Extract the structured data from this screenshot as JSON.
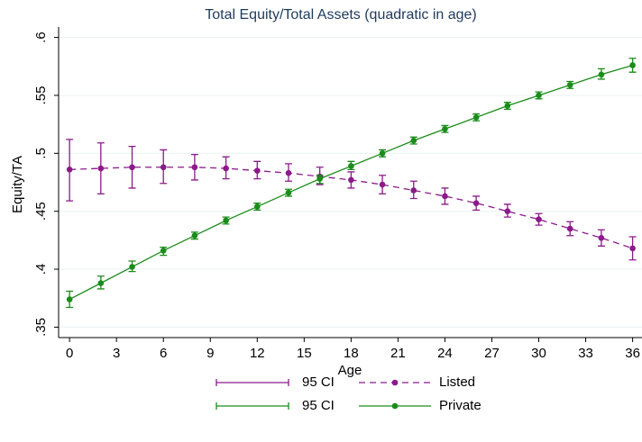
{
  "chart_data": {
    "type": "line",
    "title": "Total Equity/Total Assets (quadratic in age)",
    "x_label": "Age",
    "y_label": "Equity/TA",
    "x": [
      0,
      2,
      4,
      6,
      8,
      10,
      12,
      14,
      16,
      18,
      20,
      22,
      24,
      26,
      28,
      30,
      32,
      34,
      36
    ],
    "xlim": [
      -0.7,
      36.6
    ],
    "xticks": [
      0,
      3,
      6,
      9,
      12,
      15,
      18,
      21,
      24,
      27,
      30,
      33,
      36
    ],
    "ylim": [
      0.341,
      0.609
    ],
    "yticks": [
      {
        "value": 0.35,
        "label": ".35"
      },
      {
        "value": 0.4,
        "label": ".4"
      },
      {
        "value": 0.45,
        "label": ".45"
      },
      {
        "value": 0.5,
        "label": ".5"
      },
      {
        "value": 0.55,
        "label": ".55"
      },
      {
        "value": 0.6,
        "label": ".6"
      }
    ],
    "grid": true,
    "series": [
      {
        "name": "Listed",
        "ci_name": "95 CI",
        "color": "#8b1a8b",
        "dashed": true,
        "values": [
          0.486,
          0.487,
          0.488,
          0.488,
          0.488,
          0.487,
          0.485,
          0.483,
          0.48,
          0.477,
          0.473,
          0.468,
          0.463,
          0.457,
          0.45,
          0.443,
          0.435,
          0.427,
          0.418
        ],
        "lower": [
          0.459,
          0.465,
          0.47,
          0.474,
          0.477,
          0.478,
          0.478,
          0.476,
          0.473,
          0.47,
          0.465,
          0.461,
          0.456,
          0.451,
          0.445,
          0.438,
          0.429,
          0.42,
          0.408
        ],
        "upper": [
          0.512,
          0.509,
          0.506,
          0.503,
          0.499,
          0.497,
          0.493,
          0.491,
          0.488,
          0.484,
          0.481,
          0.476,
          0.47,
          0.463,
          0.456,
          0.448,
          0.441,
          0.434,
          0.428
        ]
      },
      {
        "name": "Private",
        "ci_name": "95 CI",
        "color": "#1a8c1a",
        "dashed": false,
        "values": [
          0.374,
          0.388,
          0.402,
          0.416,
          0.429,
          0.442,
          0.454,
          0.466,
          0.478,
          0.489,
          0.5,
          0.511,
          0.521,
          0.531,
          0.541,
          0.55,
          0.559,
          0.568,
          0.576
        ],
        "lower": [
          0.367,
          0.383,
          0.398,
          0.412,
          0.426,
          0.439,
          0.451,
          0.463,
          0.474,
          0.486,
          0.497,
          0.508,
          0.518,
          0.528,
          0.538,
          0.547,
          0.556,
          0.564,
          0.57
        ],
        "upper": [
          0.381,
          0.394,
          0.407,
          0.419,
          0.432,
          0.445,
          0.457,
          0.469,
          0.481,
          0.493,
          0.503,
          0.514,
          0.524,
          0.534,
          0.544,
          0.553,
          0.562,
          0.573,
          0.582
        ]
      }
    ]
  }
}
